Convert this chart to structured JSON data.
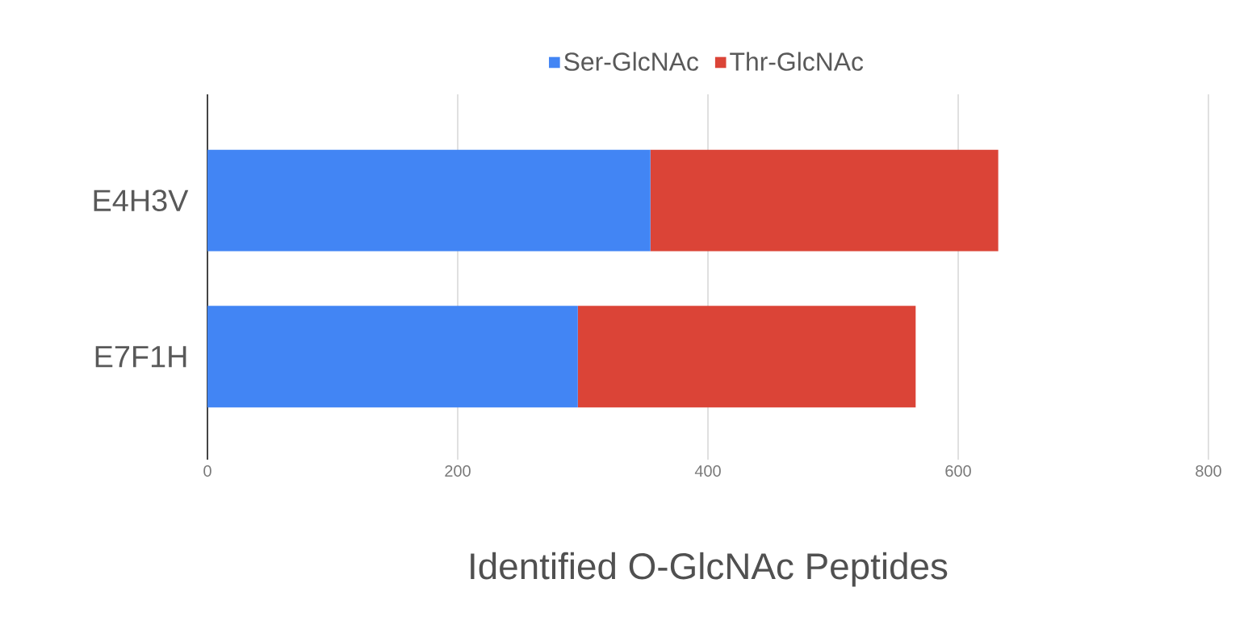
{
  "chart_data": {
    "type": "bar",
    "orientation": "horizontal",
    "stacked": true,
    "categories": [
      "E4H3V",
      "E7F1H"
    ],
    "series": [
      {
        "name": "Ser-GlcNAc",
        "color": "#4285f4",
        "values": [
          354,
          296
        ]
      },
      {
        "name": "Thr-GlcNAc",
        "color": "#db4437",
        "values": [
          278,
          270
        ]
      }
    ],
    "xlabel": "Identified O-GlcNAc Peptides",
    "xlim": [
      0,
      800
    ],
    "xticks": [
      0,
      200,
      400,
      600,
      800
    ],
    "grid": "x",
    "legend": "top"
  }
}
